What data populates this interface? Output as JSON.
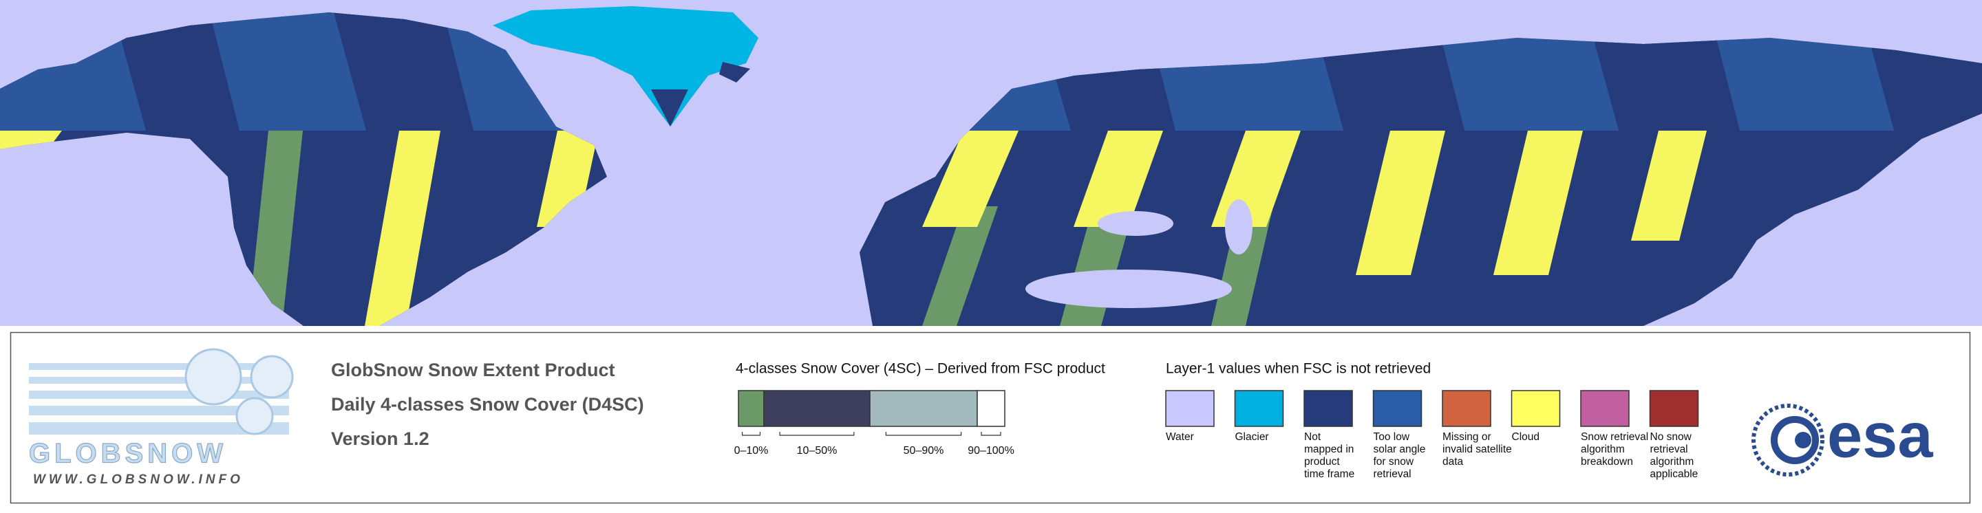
{
  "logo": {
    "name": "GLOBSNOW",
    "url": "WWW.GLOBSNOW.INFO"
  },
  "product": {
    "lines": [
      "GlobSnow Snow Extent Product",
      "Daily 4-classes Snow Cover (D4SC)",
      "Version 1.2"
    ]
  },
  "snow_cover_legend": {
    "title": "4-classes Snow Cover (4SC) – Derived from FSC product",
    "classes": [
      {
        "label": "0–10%",
        "color": "#6b9a68"
      },
      {
        "label": "10–50%",
        "color": "#3e3f5e"
      },
      {
        "label": "50–90%",
        "color": "#a2b9bd"
      },
      {
        "label": "90–100%",
        "color": "#ffffff"
      }
    ]
  },
  "layer1_legend": {
    "title": "Layer-1 values when FSC is not retrieved",
    "items": [
      {
        "lines": [
          "Water"
        ],
        "color": "#c8c8ff"
      },
      {
        "lines": [
          "Glacier"
        ],
        "color": "#00b0e0"
      },
      {
        "lines": [
          "Not",
          "mapped in",
          "product",
          "time frame"
        ],
        "color": "#263c7a"
      },
      {
        "lines": [
          "Too low",
          "solar angle",
          "for snow",
          "retrieval"
        ],
        "color": "#2a5ca8"
      },
      {
        "lines": [
          "Missing or",
          "invalid satellite",
          "data"
        ],
        "color": "#d06440"
      },
      {
        "lines": [
          "Cloud"
        ],
        "color": "#ffff60"
      },
      {
        "lines": [
          "Snow retrieval",
          "algorithm",
          "breakdown"
        ],
        "color": "#c060a0"
      },
      {
        "lines": [
          "No snow",
          "retrieval",
          "algorithm",
          "applicable"
        ],
        "color": "#a03030"
      }
    ]
  },
  "agency": {
    "name": "esa"
  }
}
